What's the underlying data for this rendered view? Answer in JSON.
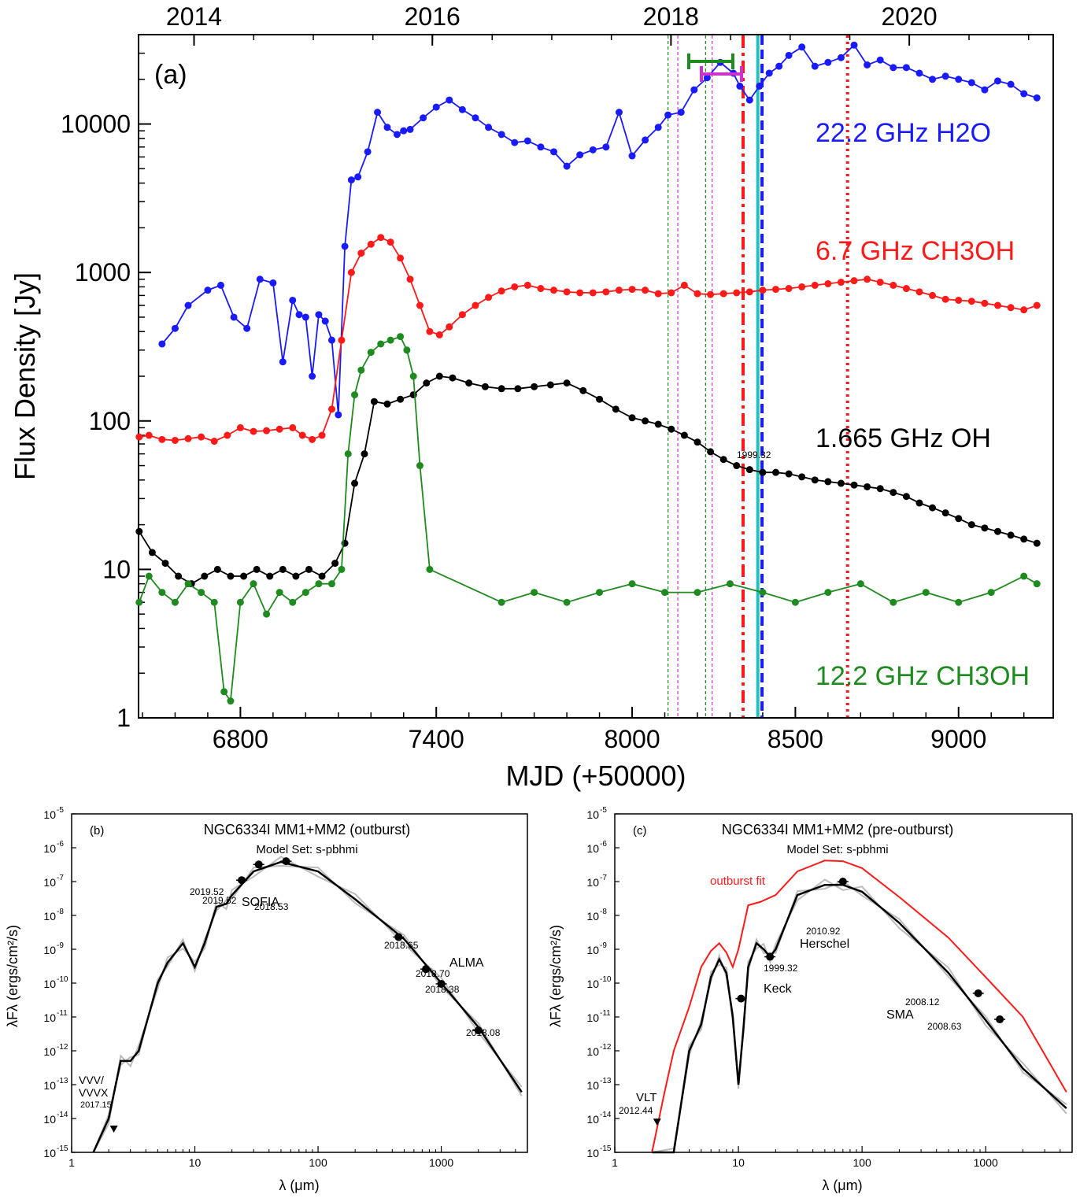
{
  "panel_a": {
    "panel_label": "(a)",
    "ylabel": "Flux Density [Jy]",
    "xlabel": "MJD (+50000)",
    "x_ticks": [
      "6800",
      "7400",
      "8000",
      "8500",
      "9000"
    ],
    "x_tick_values": [
      6800,
      7400,
      8000,
      8500,
      9000
    ],
    "top_ticks": [
      "2014",
      "2016",
      "2018",
      "2020"
    ],
    "top_tick_mjd": [
      6658,
      7388,
      8119,
      8849
    ],
    "y_ticks": [
      "1",
      "10",
      "100",
      "1000",
      "10000"
    ],
    "series_labels": [
      {
        "text": "22.2 GHz H2O",
        "color": "#1a1aff"
      },
      {
        "text": "6.7 GHz CH3OH",
        "color": "#ff1a1a"
      },
      {
        "text": "1.665 GHz OH",
        "color": "#000000"
      },
      {
        "text": "12.2 GHz CH3OH",
        "color": "#1f8a1f"
      }
    ]
  },
  "panel_b": {
    "panel_label": "(b)",
    "title": "NGC6334I MM1+MM2 (outburst)",
    "subtitle": "Model Set: s-pbhmi",
    "ylabel": "λFλ (ergs/cm²/s)",
    "xlabel": "λ (μm)",
    "x_ticks": [
      "1",
      "10",
      "100",
      "1000"
    ],
    "y_exponents": [
      "-5",
      "-6",
      "-7",
      "-8",
      "-9",
      "-10",
      "-11",
      "-12",
      "-13",
      "-14",
      "-15"
    ],
    "annotations": [
      "2019.52",
      "2019.52",
      "2018.53",
      "SOFIA",
      "2018.65",
      "ALMA",
      "2018.70",
      "2018.38",
      "2018.08",
      "VVV/",
      "VVVX",
      "2017.15"
    ]
  },
  "panel_c": {
    "panel_label": "(c)",
    "title": "NGC6334I MM1+MM2 (pre-outburst)",
    "subtitle": "Model Set: s-pbhmi",
    "ylabel": "λFλ (ergs/cm²/s)",
    "xlabel": "λ (μm)",
    "x_ticks": [
      "1",
      "10",
      "100",
      "1000"
    ],
    "y_exponents": [
      "-5",
      "-6",
      "-7",
      "-8",
      "-9",
      "-10",
      "-11",
      "-12",
      "-13",
      "-14",
      "-15"
    ],
    "annotations": [
      "outburst fit",
      "2010.92",
      "Herschel",
      "1999.32",
      "Keck",
      "1999.32",
      "2008.12",
      "SMA",
      "2008.63",
      "VLT",
      "2012.44"
    ]
  },
  "chart_data": [
    {
      "type": "line",
      "yscale": "log",
      "ylim": [
        1,
        40000
      ],
      "xlim": [
        6488,
        9290
      ],
      "xlabel": "MJD (+50000)",
      "ylabel": "Flux Density [Jy]",
      "series": [
        {
          "name": "22.2 GHz H2O",
          "color": "#1a1aff",
          "x": [
            6560,
            6600,
            6640,
            6700,
            6740,
            6780,
            6820,
            6860,
            6900,
            6930,
            6960,
            6980,
            7000,
            7020,
            7040,
            7060,
            7080,
            7100,
            7120,
            7140,
            7160,
            7190,
            7220,
            7250,
            7280,
            7300,
            7320,
            7360,
            7400,
            7440,
            7480,
            7520,
            7560,
            7600,
            7640,
            7680,
            7720,
            7760,
            7800,
            7840,
            7880,
            7920,
            7960,
            8000,
            8040,
            8080,
            8110,
            8150,
            8190,
            8230,
            8270,
            8310,
            8330,
            8360,
            8390,
            8420,
            8450,
            8480,
            8520,
            8560,
            8600,
            8640,
            8680,
            8720,
            8760,
            8800,
            8840,
            8880,
            8920,
            8960,
            9000,
            9040,
            9080,
            9120,
            9160,
            9200,
            9240
          ],
          "values": [
            330,
            420,
            600,
            760,
            820,
            500,
            420,
            900,
            850,
            250,
            650,
            520,
            500,
            200,
            520,
            470,
            350,
            110,
            1500,
            4200,
            4400,
            6500,
            12000,
            9500,
            8500,
            9000,
            9200,
            11000,
            13000,
            14500,
            12500,
            11000,
            9500,
            8500,
            7500,
            7700,
            7000,
            6500,
            5200,
            6200,
            6700,
            7000,
            12000,
            6100,
            7800,
            9500,
            11500,
            12000,
            17000,
            20500,
            26000,
            22000,
            18000,
            14500,
            18000,
            22000,
            24500,
            29000,
            33000,
            24500,
            26000,
            28000,
            34000,
            25000,
            27000,
            24000,
            24000,
            22000,
            20000,
            21000,
            20000,
            19000,
            17000,
            19500,
            18500,
            16000,
            15000
          ]
        },
        {
          "name": "6.7 GHz CH3OH",
          "color": "#ff1a1a",
          "x": [
            6490,
            6520,
            6560,
            6600,
            6640,
            6680,
            6720,
            6760,
            6800,
            6840,
            6880,
            6920,
            6960,
            6990,
            7020,
            7050,
            7080,
            7110,
            7140,
            7170,
            7200,
            7230,
            7260,
            7290,
            7320,
            7350,
            7380,
            7410,
            7440,
            7480,
            7520,
            7560,
            7600,
            7640,
            7680,
            7720,
            7760,
            7800,
            7840,
            7880,
            7920,
            7960,
            8000,
            8040,
            8080,
            8120,
            8160,
            8200,
            8240,
            8280,
            8320,
            8360,
            8400,
            8440,
            8480,
            8520,
            8560,
            8600,
            8640,
            8680,
            8720,
            8760,
            8800,
            8840,
            8880,
            8920,
            8960,
            9000,
            9040,
            9080,
            9120,
            9160,
            9200,
            9240
          ],
          "values": [
            78,
            80,
            75,
            74,
            76,
            78,
            73,
            80,
            90,
            85,
            86,
            88,
            90,
            80,
            75,
            80,
            120,
            350,
            1000,
            1350,
            1550,
            1720,
            1600,
            1250,
            900,
            600,
            400,
            380,
            430,
            520,
            600,
            680,
            750,
            800,
            820,
            780,
            760,
            740,
            730,
            730,
            740,
            760,
            770,
            760,
            720,
            730,
            820,
            720,
            710,
            720,
            730,
            740,
            760,
            770,
            780,
            800,
            820,
            840,
            860,
            880,
            900,
            860,
            820,
            780,
            740,
            700,
            660,
            650,
            640,
            620,
            600,
            580,
            560,
            600
          ]
        },
        {
          "name": "1.665 GHz OH",
          "color": "#000000",
          "x": [
            6490,
            6530,
            6570,
            6610,
            6650,
            6690,
            6730,
            6770,
            6810,
            6850,
            6890,
            6930,
            6970,
            7010,
            7050,
            7090,
            7120,
            7150,
            7180,
            7210,
            7250,
            7290,
            7330,
            7370,
            7410,
            7450,
            7500,
            7550,
            7600,
            7650,
            7700,
            7750,
            7800,
            7850,
            7900,
            7950,
            8000,
            8040,
            8080,
            8120,
            8160,
            8200,
            8240,
            8280,
            8320,
            8360,
            8400,
            8440,
            8480,
            8520,
            8560,
            8600,
            8640,
            8680,
            8720,
            8760,
            8800,
            8840,
            8880,
            8920,
            8960,
            9000,
            9040,
            9080,
            9120,
            9160,
            9200,
            9240
          ],
          "values": [
            18,
            13,
            11,
            9,
            8,
            9,
            10,
            9,
            9,
            10,
            9,
            10,
            9,
            10,
            9,
            11,
            15,
            38,
            60,
            135,
            130,
            140,
            150,
            180,
            200,
            195,
            180,
            170,
            165,
            165,
            170,
            175,
            180,
            160,
            140,
            120,
            105,
            100,
            95,
            88,
            80,
            72,
            62,
            55,
            50,
            47,
            45,
            45,
            44,
            42,
            40,
            39,
            38,
            37,
            36,
            35,
            33,
            31,
            28,
            26,
            24,
            22,
            20,
            19,
            18,
            17,
            16,
            15
          ]
        },
        {
          "name": "12.2 GHz CH3OH",
          "color": "#1f8a1f",
          "x": [
            6490,
            6520,
            6560,
            6600,
            6640,
            6680,
            6720,
            6750,
            6770,
            6800,
            6840,
            6880,
            6920,
            6960,
            7000,
            7040,
            7080,
            7110,
            7130,
            7150,
            7170,
            7200,
            7230,
            7260,
            7290,
            7310,
            7330,
            7350,
            7380,
            7600,
            7700,
            7800,
            7900,
            8000,
            8100,
            8200,
            8300,
            8400,
            8500,
            8600,
            8700,
            8800,
            8900,
            9000,
            9100,
            9200,
            9240
          ],
          "values": [
            6,
            9,
            7,
            6,
            8,
            7,
            6,
            1.5,
            1.3,
            6,
            8,
            5,
            7,
            6,
            7,
            8,
            8,
            10,
            60,
            150,
            220,
            290,
            330,
            350,
            370,
            300,
            200,
            50,
            10,
            6,
            7,
            6,
            7,
            8,
            7,
            7,
            8,
            7,
            6,
            7,
            8,
            6,
            7,
            6,
            7,
            9,
            8
          ]
        }
      ],
      "vertical_lines": [
        {
          "x": 8340,
          "color": "#ff1a1a",
          "style": "dash-dot"
        },
        {
          "x": 8385,
          "color": "#20c0c0",
          "style": "solid"
        },
        {
          "x": 8398,
          "color": "#1a1aff",
          "style": "dashed"
        },
        {
          "x": 8660,
          "color": "#ff1a1a",
          "style": "dotted"
        },
        {
          "x": 8110,
          "color": "#1f8a1f",
          "style": "thin-dashed"
        },
        {
          "x": 8225,
          "color": "#1f8a1f",
          "style": "thin-dashed"
        },
        {
          "x": 8140,
          "color": "#cc33cc",
          "style": "thin-dashed"
        },
        {
          "x": 8245,
          "color": "#cc33cc",
          "style": "thin-dashed"
        }
      ]
    },
    {
      "type": "line",
      "xscale": "log",
      "yscale": "log",
      "xlim": [
        1,
        5000
      ],
      "ylim": [
        1e-15,
        1e-05
      ],
      "xlabel": "λ (μm)",
      "ylabel": "λFλ (ergs/cm²/s)",
      "points": [
        {
          "x": 24,
          "y": 1.1e-07,
          "label": "2019.52"
        },
        {
          "x": 33,
          "y": 3.2e-07,
          "label": "2019.52"
        },
        {
          "x": 55,
          "y": 4e-07,
          "label": "2018.53"
        },
        {
          "x": 450,
          "y": 2.3e-09,
          "label": "2018.65"
        },
        {
          "x": 750,
          "y": 2.6e-10,
          "label": "2018.70"
        },
        {
          "x": 1000,
          "y": 9.5e-11,
          "label": "2018.38"
        },
        {
          "x": 2000,
          "y": 4e-12,
          "label": "2018.08"
        },
        {
          "x": 2.2,
          "y": 5e-15,
          "label": "2017.15",
          "upper_limit": true
        }
      ],
      "best_fit": {
        "x": [
          1.5,
          2,
          2.5,
          3,
          3.5,
          5,
          6,
          8,
          10,
          12,
          15,
          18,
          20,
          30,
          50,
          100,
          200,
          500,
          1000,
          2000,
          4500
        ],
        "y": [
          1e-16,
          1e-14,
          5e-13,
          5e-13,
          1e-12,
          1e-10,
          4e-10,
          1.5e-09,
          3e-10,
          1.5e-09,
          1.8e-08,
          2.2e-08,
          4e-08,
          2e-07,
          3.8e-07,
          2e-07,
          3e-08,
          2e-09,
          1e-10,
          5e-12,
          6e-14
        ]
      }
    },
    {
      "type": "line",
      "xscale": "log",
      "yscale": "log",
      "xlim": [
        1,
        5000
      ],
      "ylim": [
        1e-15,
        1e-05
      ],
      "xlabel": "λ (μm)",
      "ylabel": "λFλ (ergs/cm²/s)",
      "points": [
        {
          "x": 70,
          "y": 1e-07,
          "label": "2010.92"
        },
        {
          "x": 18,
          "y": 6e-10,
          "label": "1999.32"
        },
        {
          "x": 10.5,
          "y": 3.5e-11,
          "label": "1999.32"
        },
        {
          "x": 870,
          "y": 5e-11,
          "label": "2008.12"
        },
        {
          "x": 1300,
          "y": 8.5e-12,
          "label": "2008.63"
        },
        {
          "x": 2.2,
          "y": 8e-15,
          "label": "2012.44",
          "upper_limit": true
        }
      ],
      "best_fit": {
        "x": [
          2,
          3,
          4,
          5,
          6,
          7,
          8,
          9,
          10,
          11,
          12,
          14,
          16,
          18,
          20,
          30,
          50,
          70,
          100,
          200,
          500,
          1000,
          2000,
          4500
        ],
        "y": [
          1e-16,
          1e-15,
          1e-12,
          6e-12,
          1.5e-10,
          5e-10,
          2e-10,
          1e-11,
          1e-13,
          5e-12,
          3e-10,
          1.5e-09,
          1e-09,
          6e-10,
          1e-09,
          4e-08,
          8e-08,
          8e-08,
          5e-08,
          6e-09,
          2e-10,
          8e-12,
          3e-13,
          2e-14
        ]
      },
      "outburst_fit": {
        "x": [
          2,
          2.5,
          3,
          4,
          5,
          6,
          7,
          8,
          9,
          10,
          12,
          15,
          20,
          30,
          50,
          70,
          100,
          200,
          500,
          1000,
          2000,
          4500
        ],
        "y": [
          1e-15,
          5e-14,
          1e-12,
          2e-11,
          3e-10,
          9e-10,
          1.5e-09,
          8e-10,
          3e-10,
          1e-09,
          2e-08,
          2.5e-08,
          4e-08,
          2e-07,
          4.2e-07,
          4e-07,
          2.5e-07,
          3.5e-08,
          2.2e-09,
          1.5e-10,
          1e-11,
          6e-14
        ]
      }
    }
  ]
}
